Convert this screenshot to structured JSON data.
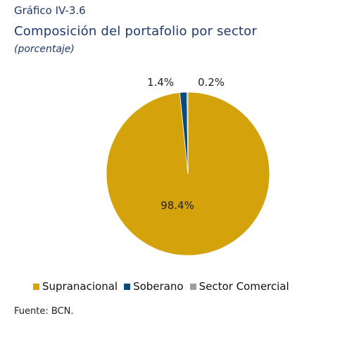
{
  "header": {
    "figure_label": "Gráfico IV-3.6",
    "title": "Composición del portafolio por sector",
    "subtitle": "(porcentaje)"
  },
  "chart_data": {
    "type": "pie",
    "title": "Composición del portafolio por sector",
    "subtitle": "(porcentaje)",
    "categories": [
      "Supranacional",
      "Soberano",
      "Sector Comercial"
    ],
    "values": [
      98.4,
      1.4,
      0.2
    ],
    "labels": [
      "98.4%",
      "1.4%",
      "0.2%"
    ],
    "colors": [
      "#d4a20a",
      "#0b4a7a",
      "#9e9e9e"
    ],
    "legend_position": "bottom"
  },
  "footer": {
    "source": "Fuente: BCN."
  }
}
